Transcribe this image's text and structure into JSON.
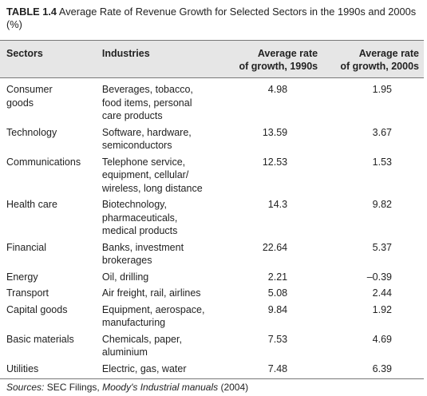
{
  "title": {
    "label": "TABLE 1.4",
    "text": "Average Rate of Revenue Growth for Selected Sectors in the 1990s and 2000s (%)"
  },
  "table": {
    "header": [
      [
        "Sectors"
      ],
      [
        "Industries"
      ],
      [
        "Average rate",
        "of growth, 1990s"
      ],
      [
        "Average rate",
        "of growth, 2000s"
      ]
    ],
    "rows": [
      [
        [
          "Consumer",
          "goods"
        ],
        [
          "Beverages, tobacco,",
          "food items, personal",
          "care products"
        ],
        "4.98",
        "1.95"
      ],
      [
        [
          "Technology"
        ],
        [
          "Software, hardware,",
          "semiconductors"
        ],
        "13.59",
        "3.67"
      ],
      [
        [
          "Communications"
        ],
        [
          "Telephone service,",
          "equipment, cellular/",
          "wireless, long distance"
        ],
        "12.53",
        "1.53"
      ],
      [
        [
          "Health care"
        ],
        [
          "Biotechnology,",
          "pharmaceuticals,",
          "medical products"
        ],
        "14.3",
        "9.82"
      ],
      [
        [
          "Financial"
        ],
        [
          "Banks, investment",
          "brokerages"
        ],
        "22.64",
        "5.37"
      ],
      [
        [
          "Energy"
        ],
        [
          "Oil, drilling"
        ],
        "2.21",
        "–0.39"
      ],
      [
        [
          "Transport"
        ],
        [
          "Air freight, rail, airlines"
        ],
        "5.08",
        "2.44"
      ],
      [
        [
          "Capital goods"
        ],
        [
          "Equipment, aerospace,",
          "manufacturing"
        ],
        "9.84",
        "1.92"
      ],
      [
        [
          "Basic materials"
        ],
        [
          "Chemicals, paper,",
          "aluminium"
        ],
        "7.53",
        "4.69"
      ],
      [
        [
          "Utilities"
        ],
        [
          "Electric, gas, water"
        ],
        "7.48",
        "6.39"
      ]
    ]
  },
  "source": {
    "label": "Sources:",
    "text1": "SEC Filings,",
    "italic": "Moody's Industrial manuals",
    "text2": "(2004)"
  }
}
